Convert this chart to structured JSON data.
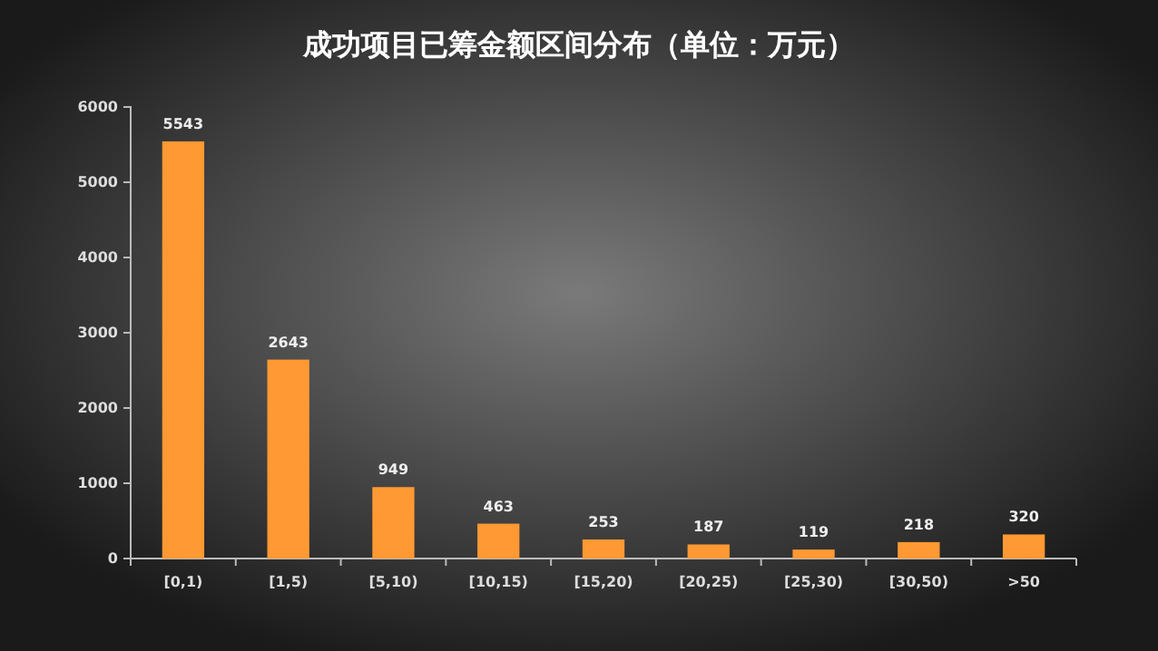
{
  "chart_data": {
    "type": "bar",
    "title": "成功项目已筹金额区间分布（单位：万元）",
    "categories": [
      "[0,1)",
      "[1,5)",
      "[5,10)",
      "[10,15)",
      "[15,20)",
      "[20,25)",
      "[25,30)",
      "[30,50)",
      ">50"
    ],
    "values": [
      5543,
      2643,
      949,
      463,
      253,
      187,
      119,
      218,
      320
    ],
    "color": "#ff9933",
    "ylim": [
      0,
      6000
    ],
    "yticks": [
      0,
      1000,
      2000,
      3000,
      4000,
      5000,
      6000
    ],
    "data_labels": true
  }
}
